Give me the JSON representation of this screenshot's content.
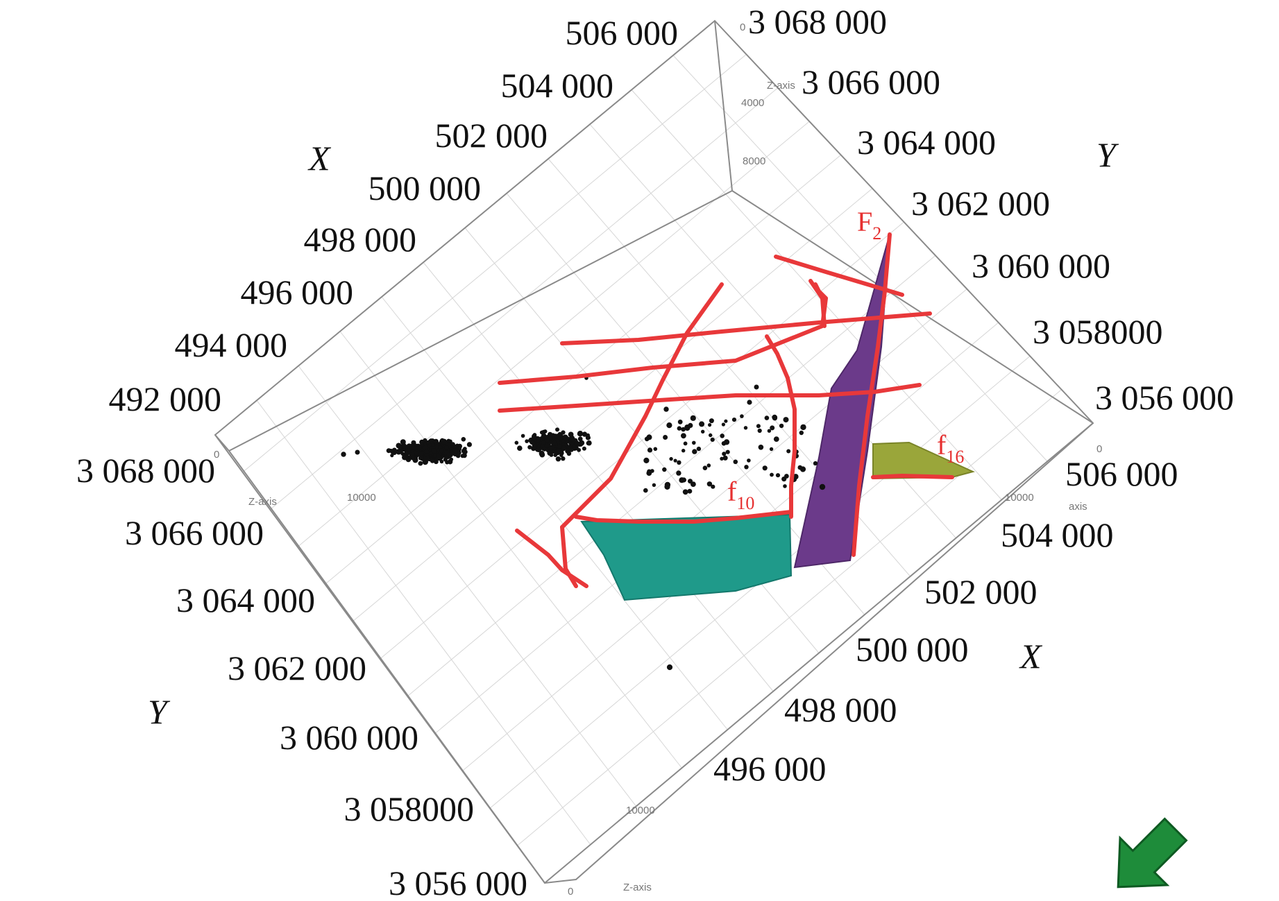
{
  "axis_titles": {
    "x_upper": "X",
    "y_upper": "Y",
    "y_lower": "Y",
    "x_lower": "X"
  },
  "x_upper_ticks": [
    "506 000",
    "504 000",
    "502 000",
    "500 000",
    "498 000",
    "496 000",
    "494 000",
    "492 000"
  ],
  "y_upper_ticks": [
    "3 068 000",
    "3 066 000",
    "3 064 000",
    "3 062 000",
    "3 060 000",
    "3 058000",
    "3 056 000"
  ],
  "y_lower_ticks": [
    "3 068 000",
    "3 066 000",
    "3 064 000",
    "3 062 000",
    "3 060 000",
    "3 058000",
    "3 056 000"
  ],
  "x_lower_ticks": [
    "506 000",
    "504 000",
    "502 000",
    "500 000",
    "498 000",
    "496 000"
  ],
  "small_labels": {
    "z_axis_top": "Z-axis",
    "z_4000": "4000",
    "z_8000": "8000",
    "z_zero_top": "0",
    "z_axis_left": "Z-axis",
    "z_10000_left": "10000",
    "z_zero_left": "0",
    "z_zero_right": "0",
    "axis_right": "axis",
    "z_10000_right": "10000",
    "z_10000_bottom": "10000",
    "z_axis_bottom": "Z-axis",
    "z_zero_bottom": "0"
  },
  "fault_labels": [
    {
      "main": "F",
      "sub": "2"
    },
    {
      "main": "f",
      "sub": "16"
    },
    {
      "main": "f",
      "sub": "10"
    }
  ],
  "colors": {
    "fault_line": "#e8383a",
    "purple_surface": "#6b3a8a",
    "teal_surface": "#1f9a8a",
    "olive_surface": "#9aa63a",
    "points": "#111111",
    "arrow": "#1e8c3a"
  },
  "icons": {
    "north_arrow": "green-arrow-icon"
  }
}
